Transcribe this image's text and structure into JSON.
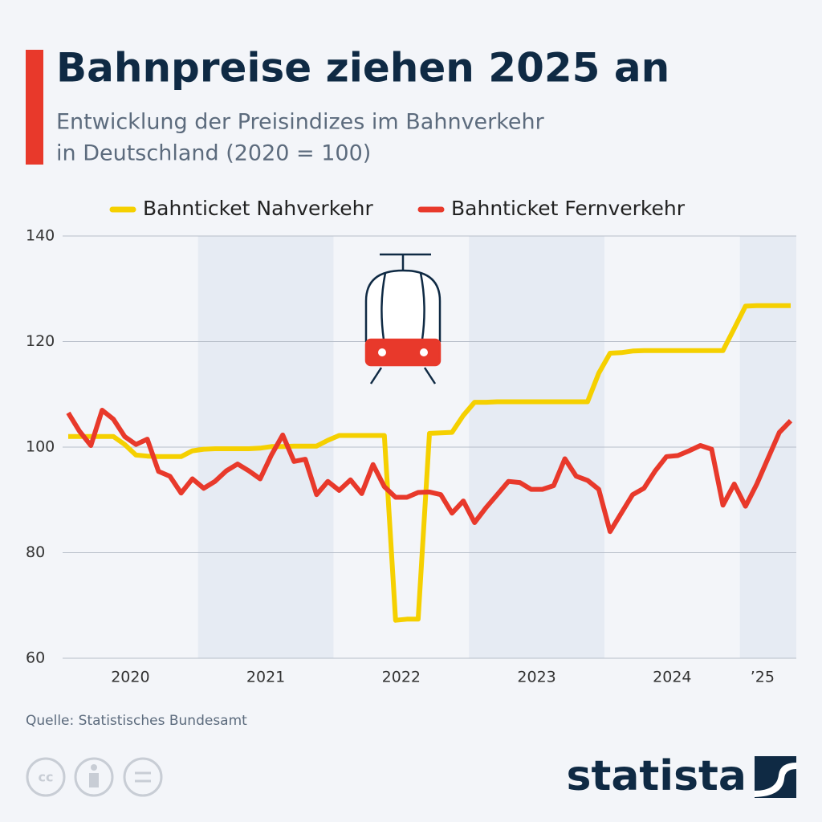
{
  "chart_data": {
    "type": "line",
    "title": "Bahnpreise ziehen 2025 an",
    "subtitle": [
      "Entwicklung der Preisindizes im Bahnverkehr",
      "in Deutschland (2020 = 100)"
    ],
    "source": "Quelle: Statistisches Bundesamt",
    "brand": "statista",
    "categories": [
      null,
      null,
      null,
      null,
      null,
      null,
      "2020",
      null,
      null,
      null,
      null,
      null,
      null,
      null,
      null,
      null,
      null,
      null,
      "2021",
      null,
      null,
      null,
      null,
      null,
      null,
      null,
      null,
      null,
      null,
      null,
      "2022",
      null,
      null,
      null,
      null,
      null,
      null,
      null,
      null,
      null,
      null,
      null,
      "2023",
      null,
      null,
      null,
      null,
      null,
      null,
      null,
      null,
      null,
      null,
      null,
      "2024",
      null,
      null,
      null,
      null,
      null,
      null,
      null,
      "’25",
      null,
      null
    ],
    "series": [
      {
        "name": "Bahnticket Nahverkehr",
        "color": "#f5d000",
        "values": [
          102,
          102,
          102,
          102,
          102,
          100.5,
          98.5,
          98.3,
          98.2,
          98.2,
          98.2,
          99.3,
          99.6,
          99.7,
          99.7,
          99.7,
          99.7,
          99.8,
          100.1,
          100.1,
          100.2,
          100.2,
          100.2,
          101.3,
          102.2,
          102.2,
          102.2,
          102.2,
          102.2,
          67.2,
          67.4,
          67.4,
          102.6,
          102.7,
          102.8,
          106,
          108.5,
          108.5,
          108.6,
          108.6,
          108.6,
          108.6,
          108.6,
          108.6,
          108.6,
          108.6,
          108.6,
          114,
          117.8,
          117.9,
          118.2,
          118.3,
          118.3,
          118.3,
          118.3,
          118.3,
          118.3,
          118.3,
          118.3,
          122.5,
          126.7,
          126.8,
          126.8,
          126.8,
          126.8
        ]
      },
      {
        "name": "Bahnticket Fernverkehr",
        "color": "#e8392b",
        "values": [
          106.5,
          103,
          100.3,
          107,
          105.3,
          102,
          100.5,
          101.5,
          95.4,
          94.5,
          91.3,
          94,
          92.2,
          93.5,
          95.5,
          96.8,
          95.5,
          94,
          98.5,
          102.3,
          97.3,
          97.7,
          91,
          93.5,
          91.8,
          93.8,
          91.2,
          96.7,
          92.5,
          90.5,
          90.5,
          91.4,
          91.5,
          91,
          87.5,
          89.8,
          85.7,
          88.5,
          91,
          93.5,
          93.3,
          92,
          92,
          92.7,
          97.8,
          94.5,
          93.7,
          92,
          84,
          87.5,
          91,
          92.2,
          95.5,
          98.2,
          98.4,
          99.3,
          100.3,
          99.6,
          89,
          93,
          88.8,
          93,
          97.9,
          102.8,
          105
        ]
      }
    ],
    "ylim": [
      60,
      140
    ],
    "yticks": [
      60,
      80,
      100,
      120,
      140
    ],
    "grid": true
  }
}
